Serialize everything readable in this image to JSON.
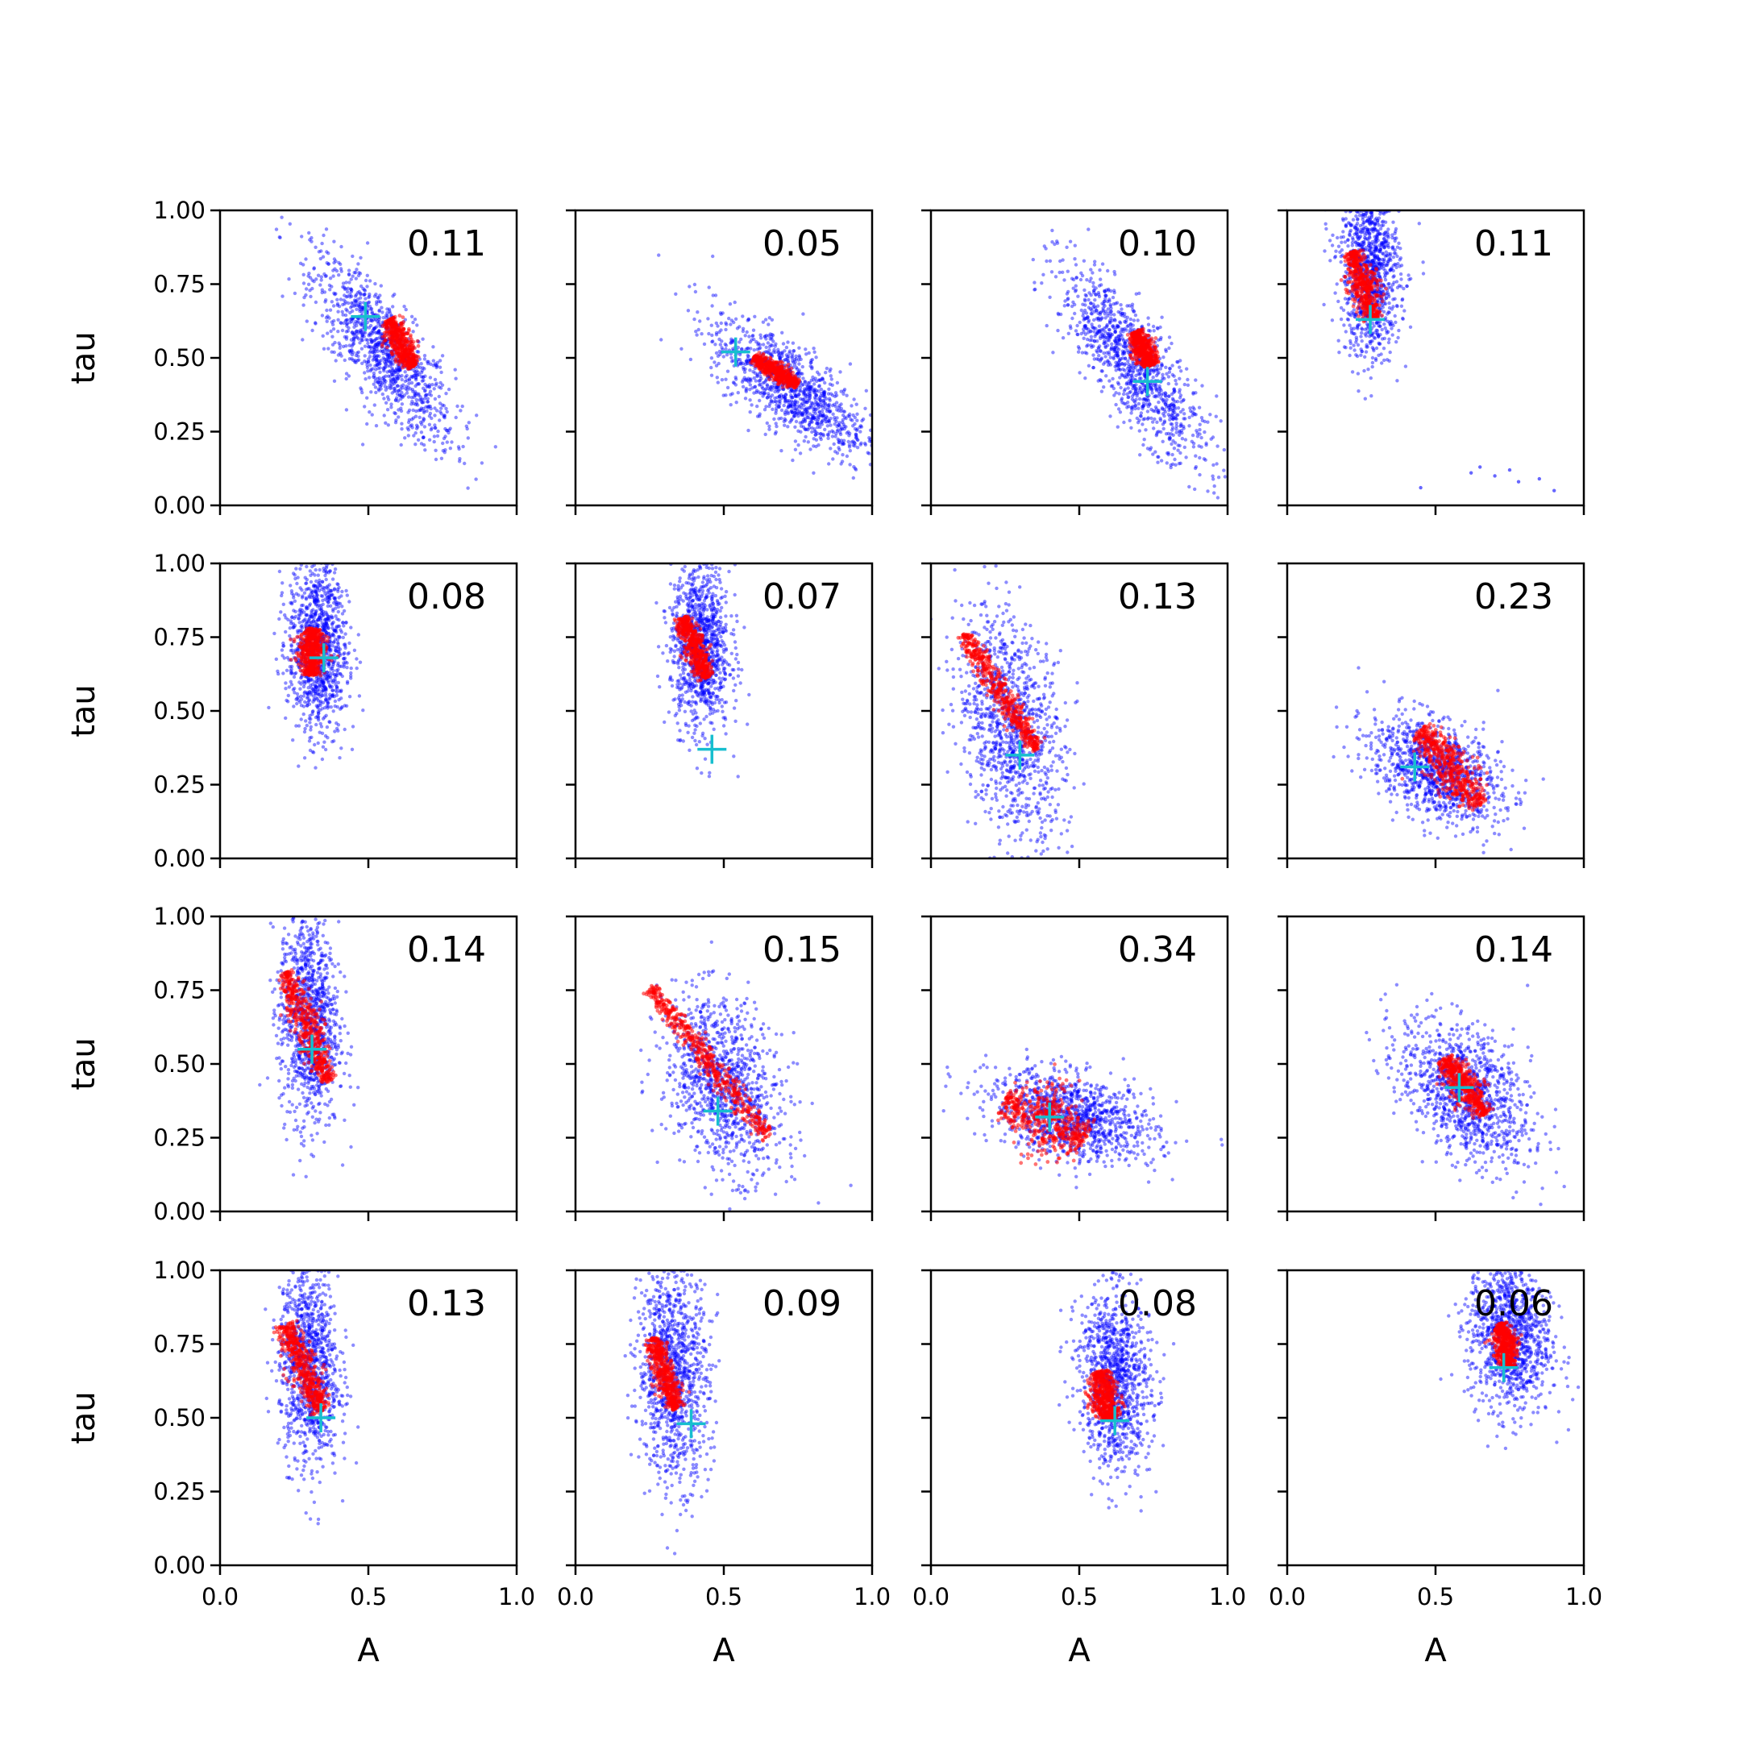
{
  "figure": {
    "xlabel": "A",
    "ylabel": "tau"
  },
  "chart_data": {
    "type": "scatter",
    "layout": "4x4 grid of scatter panels, shared axes",
    "xlabel": "A",
    "ylabel": "tau",
    "xlim": [
      0,
      1
    ],
    "ylim": [
      0,
      1
    ],
    "xticks": [
      "0.0",
      "0.5",
      "1.0"
    ],
    "yticks": [
      "0.00",
      "0.25",
      "0.50",
      "0.75",
      "1.00"
    ],
    "colors": {
      "samples": "#0000ff",
      "ridge": "#ff0000",
      "marker": "#17becf"
    },
    "series_kinds": [
      "blue sample cloud",
      "red ridge samples",
      "cyan + true value"
    ],
    "panels": [
      {
        "value": "0.11",
        "cloud": {
          "center": [
            0.55,
            0.52
          ],
          "spread": [
            0.12,
            0.12
          ],
          "rho": -0.6,
          "tilt": -0.9
        },
        "ridge": {
          "from": [
            0.57,
            0.63
          ],
          "to": [
            0.65,
            0.47
          ],
          "width": 0.02
        },
        "marker": [
          0.49,
          0.64
        ]
      },
      {
        "value": "0.05",
        "cloud": {
          "center": [
            0.72,
            0.4
          ],
          "spread": [
            0.13,
            0.09
          ],
          "rho": -0.5,
          "tilt": -0.6
        },
        "ridge": {
          "from": [
            0.6,
            0.5
          ],
          "to": [
            0.75,
            0.41
          ],
          "width": 0.015
        },
        "marker": [
          0.54,
          0.52
        ]
      },
      {
        "value": "0.10",
        "cloud": {
          "center": [
            0.68,
            0.48
          ],
          "spread": [
            0.12,
            0.12
          ],
          "rho": -0.6,
          "tilt": -1.0
        },
        "ridge": {
          "from": [
            0.69,
            0.59
          ],
          "to": [
            0.74,
            0.47
          ],
          "width": 0.02
        },
        "marker": [
          0.73,
          0.42
        ]
      },
      {
        "value": "0.11",
        "cloud": {
          "center": [
            0.28,
            0.8
          ],
          "spread": [
            0.05,
            0.15
          ],
          "rho": 0.0,
          "tilt": -0.3
        },
        "ridge": {
          "from": [
            0.22,
            0.86
          ],
          "to": [
            0.29,
            0.63
          ],
          "width": 0.025
        },
        "marker": [
          0.28,
          0.63
        ],
        "outliers": [
          [
            0.65,
            0.13
          ],
          [
            0.7,
            0.1
          ],
          [
            0.78,
            0.08
          ],
          [
            0.85,
            0.09
          ],
          [
            0.9,
            0.05
          ],
          [
            0.45,
            0.06
          ],
          [
            0.62,
            0.11
          ],
          [
            0.75,
            0.12
          ]
        ]
      },
      {
        "value": "0.08",
        "cloud": {
          "center": [
            0.33,
            0.72
          ],
          "spread": [
            0.05,
            0.15
          ],
          "rho": 0.0,
          "tilt": -0.2
        },
        "ridge": {
          "from": [
            0.31,
            0.78
          ],
          "to": [
            0.31,
            0.62
          ],
          "width": 0.025
        },
        "marker": [
          0.35,
          0.68
        ]
      },
      {
        "value": "0.07",
        "cloud": {
          "center": [
            0.42,
            0.72
          ],
          "spread": [
            0.05,
            0.14
          ],
          "rho": 0.0,
          "tilt": -0.3
        },
        "ridge": {
          "from": [
            0.36,
            0.82
          ],
          "to": [
            0.44,
            0.61
          ],
          "width": 0.02
        },
        "marker": [
          0.46,
          0.37
        ]
      },
      {
        "value": "0.13",
        "cloud": {
          "center": [
            0.27,
            0.45
          ],
          "spread": [
            0.09,
            0.18
          ],
          "rho": 0.0,
          "tilt": -1.5
        },
        "ridge": {
          "from": [
            0.11,
            0.76
          ],
          "to": [
            0.36,
            0.37
          ],
          "width": 0.02
        },
        "marker": [
          0.3,
          0.35
        ]
      },
      {
        "value": "0.23",
        "cloud": {
          "center": [
            0.5,
            0.3
          ],
          "spread": [
            0.11,
            0.08
          ],
          "rho": 0.0,
          "tilt": -0.7
        },
        "ridge": {
          "from": [
            0.45,
            0.44
          ],
          "to": [
            0.65,
            0.18
          ],
          "width": 0.035
        },
        "marker": [
          0.43,
          0.31
        ]
      },
      {
        "value": "0.14",
        "cloud": {
          "center": [
            0.3,
            0.65
          ],
          "spread": [
            0.05,
            0.18
          ],
          "rho": 0.0,
          "tilt": -0.6
        },
        "ridge": {
          "from": [
            0.22,
            0.81
          ],
          "to": [
            0.37,
            0.44
          ],
          "width": 0.025
        },
        "marker": [
          0.31,
          0.55
        ]
      },
      {
        "value": "0.15",
        "cloud": {
          "center": [
            0.5,
            0.43
          ],
          "spread": [
            0.1,
            0.14
          ],
          "rho": 0.0,
          "tilt": -1.0
        },
        "ridge": {
          "from": [
            0.25,
            0.76
          ],
          "to": [
            0.65,
            0.25
          ],
          "width": 0.02
        },
        "marker": [
          0.48,
          0.34
        ]
      },
      {
        "value": "0.34",
        "cloud": {
          "center": [
            0.48,
            0.32
          ],
          "spread": [
            0.14,
            0.07
          ],
          "rho": 0.0,
          "tilt": -0.4
        },
        "ridge": {
          "from": [
            0.25,
            0.38
          ],
          "to": [
            0.52,
            0.24
          ],
          "width": 0.06
        },
        "marker": [
          0.4,
          0.32
        ]
      },
      {
        "value": "0.14",
        "cloud": {
          "center": [
            0.6,
            0.4
          ],
          "spread": [
            0.11,
            0.11
          ],
          "rho": 0.0,
          "tilt": -1.0
        },
        "ridge": {
          "from": [
            0.53,
            0.52
          ],
          "to": [
            0.67,
            0.33
          ],
          "width": 0.025
        },
        "marker": [
          0.58,
          0.42
        ]
      },
      {
        "value": "0.13",
        "cloud": {
          "center": [
            0.3,
            0.68
          ],
          "spread": [
            0.05,
            0.17
          ],
          "rho": 0.0,
          "tilt": -0.5
        },
        "ridge": {
          "from": [
            0.22,
            0.82
          ],
          "to": [
            0.34,
            0.52
          ],
          "width": 0.025
        },
        "marker": [
          0.34,
          0.5
        ]
      },
      {
        "value": "0.09",
        "cloud": {
          "center": [
            0.33,
            0.65
          ],
          "spread": [
            0.06,
            0.18
          ],
          "rho": 0.0,
          "tilt": -0.6
        },
        "ridge": {
          "from": [
            0.26,
            0.77
          ],
          "to": [
            0.34,
            0.53
          ],
          "width": 0.02
        },
        "marker": [
          0.39,
          0.48
        ]
      },
      {
        "value": "0.08",
        "cloud": {
          "center": [
            0.62,
            0.63
          ],
          "spread": [
            0.06,
            0.15
          ],
          "rho": 0.0,
          "tilt": -0.6
        },
        "ridge": {
          "from": [
            0.57,
            0.66
          ],
          "to": [
            0.6,
            0.49
          ],
          "width": 0.025
        },
        "marker": [
          0.62,
          0.49
        ]
      },
      {
        "value": "0.06",
        "cloud": {
          "center": [
            0.75,
            0.78
          ],
          "spread": [
            0.07,
            0.13
          ],
          "rho": 0.0,
          "tilt": -0.4
        },
        "ridge": {
          "from": [
            0.72,
            0.82
          ],
          "to": [
            0.75,
            0.67
          ],
          "width": 0.02
        },
        "marker": [
          0.73,
          0.67
        ]
      }
    ]
  }
}
